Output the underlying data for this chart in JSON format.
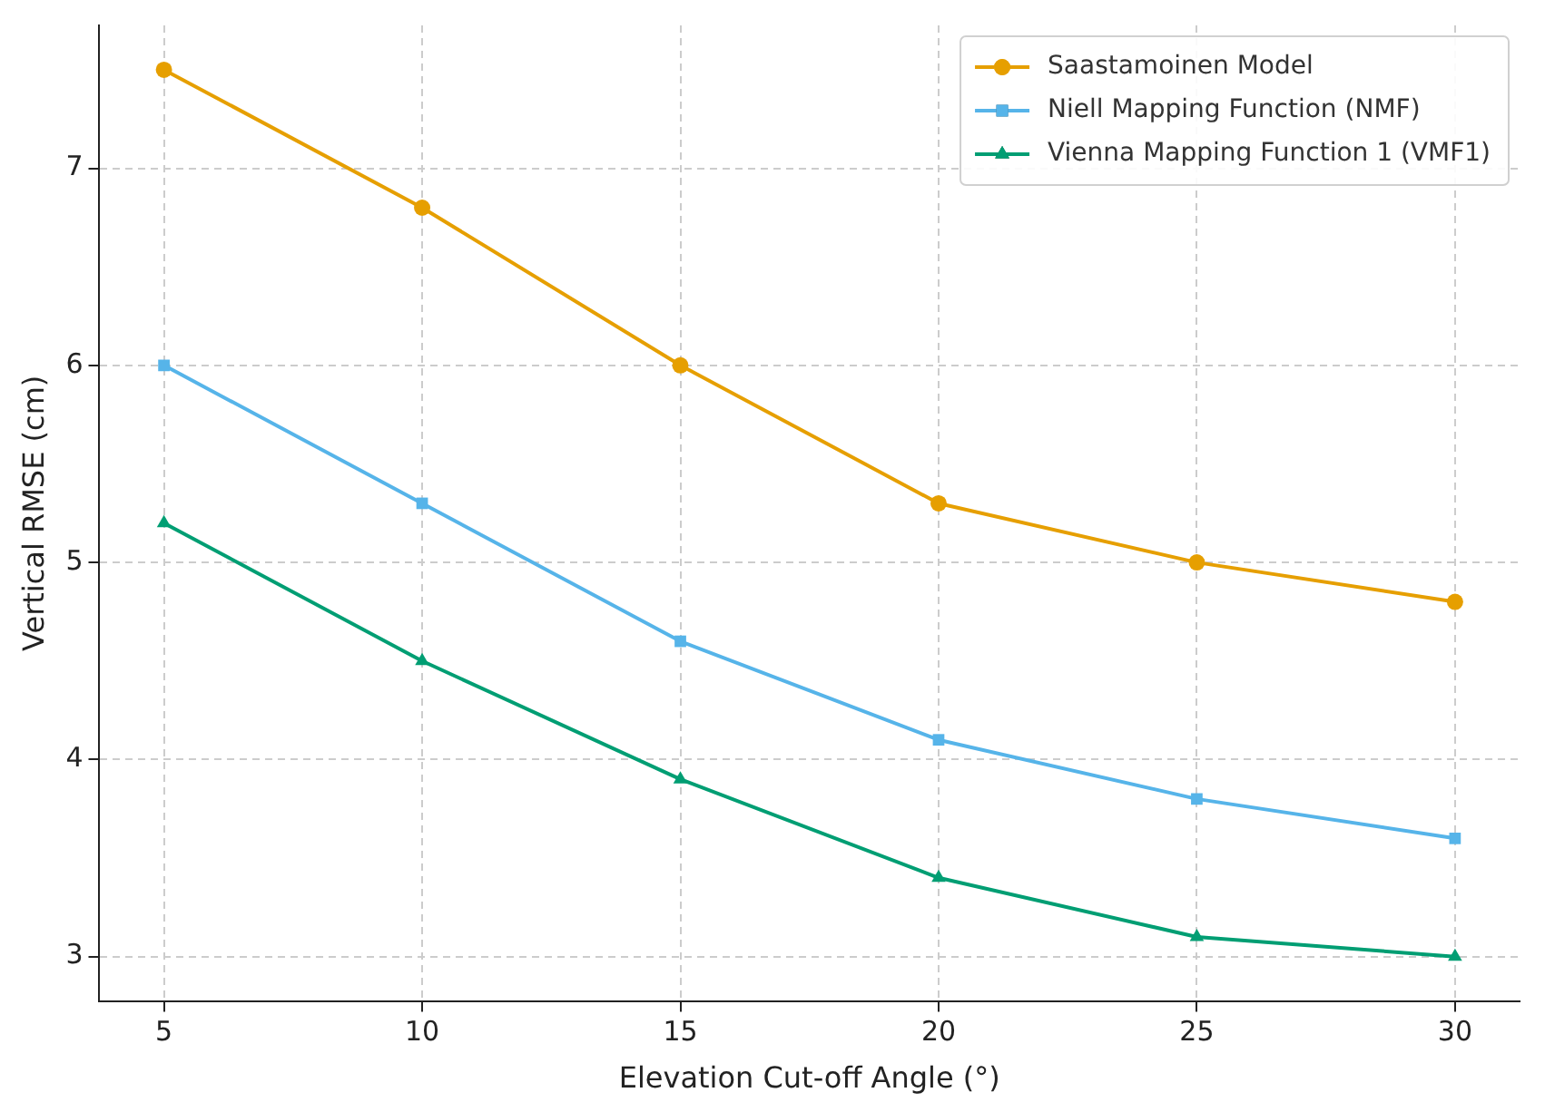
{
  "chart_data": {
    "type": "line",
    "xlabel": "Elevation Cut-off Angle (°)",
    "ylabel": "Vertical RMSE (cm)",
    "x": [
      5,
      10,
      15,
      20,
      25,
      30
    ],
    "series": [
      {
        "name": "Saastamoinen Model",
        "color": "#e69f00",
        "marker": "circle",
        "values": [
          7.5,
          6.8,
          6.0,
          5.3,
          5.0,
          4.8
        ]
      },
      {
        "name": "Niell Mapping Function (NMF)",
        "color": "#56b4e9",
        "marker": "square",
        "values": [
          6.0,
          5.3,
          4.6,
          4.1,
          3.8,
          3.6
        ]
      },
      {
        "name": "Vienna Mapping Function 1 (VMF1)",
        "color": "#009e73",
        "marker": "triangle",
        "values": [
          5.2,
          4.5,
          3.9,
          3.4,
          3.1,
          3.0
        ]
      }
    ],
    "xlim": [
      3.75,
      31.25
    ],
    "xticks": [
      5,
      10,
      15,
      20,
      25,
      30
    ],
    "ylim": [
      2.775,
      7.725
    ],
    "yticks": [
      3,
      4,
      5,
      6,
      7
    ],
    "grid": true,
    "legend": "top right",
    "line_style": "solid"
  }
}
